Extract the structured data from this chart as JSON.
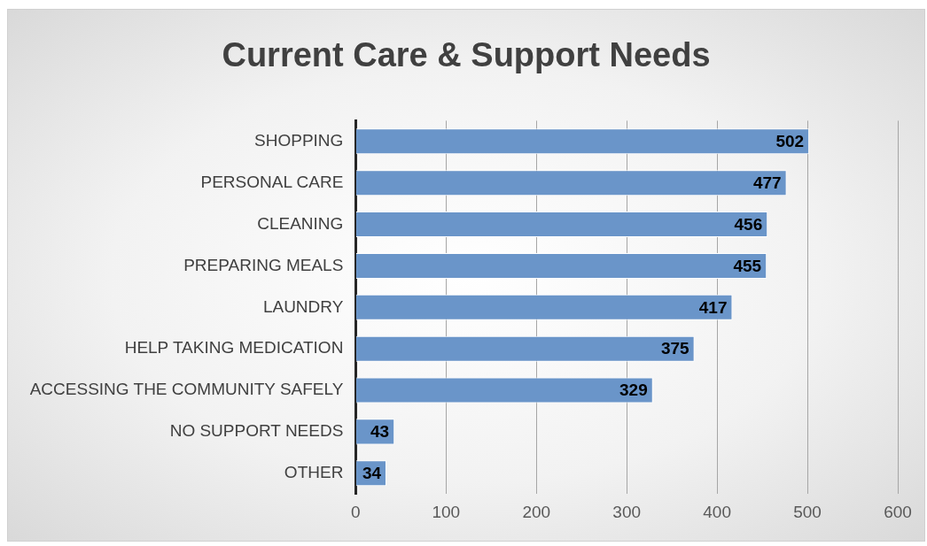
{
  "chart_data": {
    "type": "bar",
    "orientation": "horizontal",
    "title": "Current Care & Support Needs",
    "categories": [
      "SHOPPING",
      "PERSONAL CARE",
      "CLEANING",
      "PREPARING MEALS",
      "LAUNDRY",
      "HELP TAKING MEDICATION",
      "ACCESSING THE COMMUNITY SAFELY",
      "NO SUPPORT NEEDS",
      "OTHER"
    ],
    "values": [
      502,
      477,
      456,
      455,
      417,
      375,
      329,
      43,
      34
    ],
    "color": "#6a95c9",
    "xlim": [
      0,
      600
    ],
    "xticks": [
      0,
      100,
      200,
      300,
      400,
      500,
      600
    ],
    "grid": "x",
    "data_labels": true
  }
}
